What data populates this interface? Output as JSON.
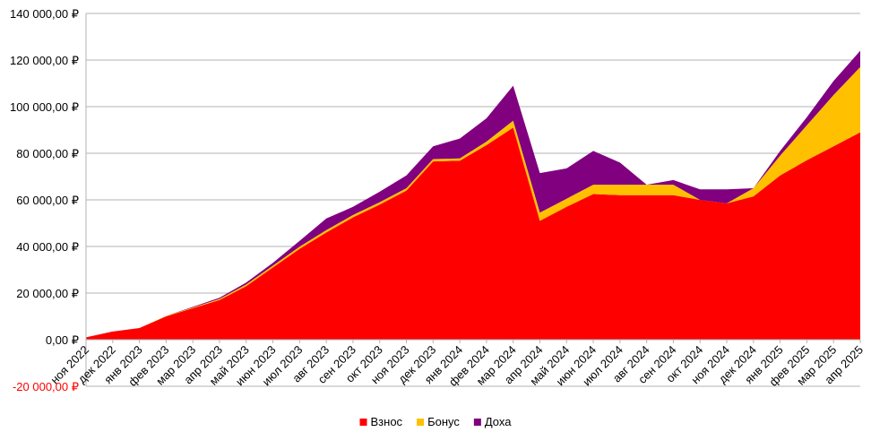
{
  "chart_data": {
    "type": "area",
    "stacked": true,
    "title": "",
    "xlabel": "",
    "ylabel": "",
    "ylim": [
      -20000,
      140000
    ],
    "y_ticks": [
      -20000,
      0,
      20000,
      40000,
      60000,
      80000,
      100000,
      120000,
      140000
    ],
    "y_tick_labels": [
      "-20 000,00 ₽",
      "0,00 ₽",
      "20 000,00 ₽",
      "40 000,00 ₽",
      "60 000,00 ₽",
      "80 000,00 ₽",
      "100 000,00 ₽",
      "120 000,00 ₽",
      "140 000,00 ₽"
    ],
    "categories": [
      "ноя 2022",
      "дек 2022",
      "янв 2023",
      "фев 2023",
      "мар 2023",
      "апр 2023",
      "май 2023",
      "июн 2023",
      "июл 2023",
      "авг 2023",
      "сен 2023",
      "окт 2023",
      "ноя 2023",
      "дек 2023",
      "янв 2024",
      "фев 2024",
      "мар 2024",
      "апр 2024",
      "май 2024",
      "июн 2024",
      "июл 2024",
      "авг 2024",
      "сен 2024",
      "окт 2024",
      "ноя 2024",
      "дек 2024",
      "янв 2025",
      "фев 2025",
      "мар 2025",
      "апр 2025"
    ],
    "series": [
      {
        "name": "Взнос",
        "color": "#ff0000",
        "values": [
          1000,
          3500,
          5000,
          10000,
          13500,
          17000,
          23000,
          31000,
          39000,
          46000,
          52500,
          58000,
          64000,
          76500,
          76800,
          83500,
          91000,
          51000,
          57000,
          62500,
          62000,
          62000,
          62000,
          60000,
          58500,
          61500,
          70500,
          77000,
          83000,
          89000
        ]
      },
      {
        "name": "Бонус",
        "color": "#ffc000",
        "values": [
          0,
          0,
          0,
          200,
          300,
          500,
          700,
          800,
          900,
          1000,
          1000,
          1000,
          1000,
          1000,
          1000,
          1500,
          3000,
          3500,
          3500,
          4000,
          4500,
          4500,
          4500,
          0,
          0,
          3500,
          8500,
          15000,
          22000,
          28000
        ]
      },
      {
        "name": "Доха",
        "color": "#800080",
        "values": [
          0,
          0,
          0,
          0,
          300,
          500,
          800,
          1200,
          2500,
          5000,
          3500,
          4500,
          5500,
          5500,
          8500,
          10000,
          15000,
          17000,
          13000,
          14500,
          9500,
          0,
          2000,
          4500,
          6000,
          0,
          2000,
          3500,
          6000,
          7000
        ]
      }
    ],
    "legend": {
      "position": "bottom"
    }
  }
}
